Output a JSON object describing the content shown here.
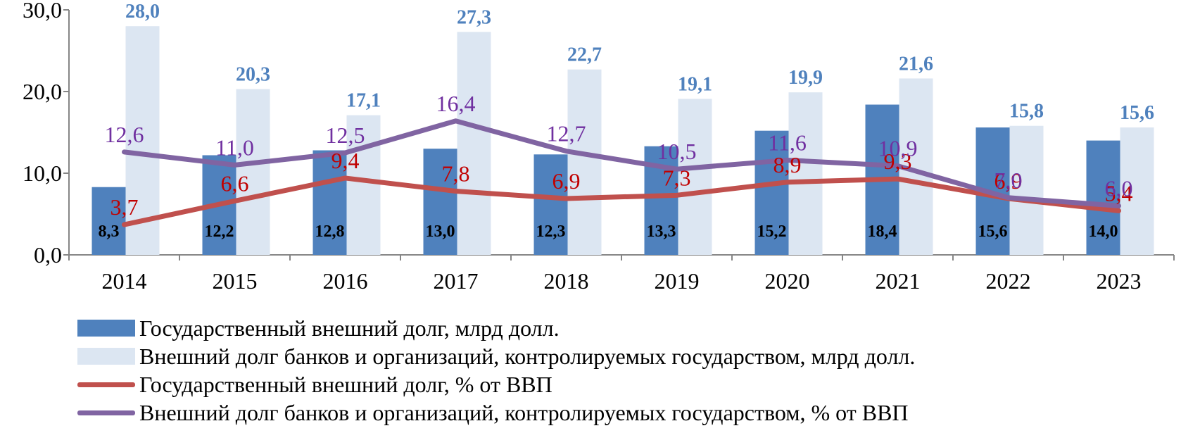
{
  "chart_data": {
    "type": "bar",
    "categories": [
      "2014",
      "2015",
      "2016",
      "2017",
      "2018",
      "2019",
      "2020",
      "2021",
      "2022",
      "2023"
    ],
    "ylim": [
      0,
      30
    ],
    "yticks": [
      "0,0",
      "10,0",
      "20,0",
      "30,0"
    ],
    "grid": false,
    "legend_position": "bottom",
    "series": [
      {
        "name": "Государственный внешний долг, млрд долл.",
        "kind": "bar",
        "color": "#4f81bd",
        "values": [
          8.3,
          12.2,
          12.8,
          13.0,
          12.3,
          13.3,
          15.2,
          18.4,
          15.6,
          14.0
        ],
        "labels": [
          "8,3",
          "12,2",
          "12,8",
          "13,0",
          "12,3",
          "13,3",
          "15,2",
          "18,4",
          "15,6",
          "14,0"
        ],
        "label_color": "#000000"
      },
      {
        "name": "Внешний долг банков и организаций, контролируемых государством, млрд долл.",
        "kind": "bar",
        "color": "#dce6f2",
        "values": [
          28.0,
          20.3,
          17.1,
          27.3,
          22.7,
          19.1,
          19.9,
          21.6,
          15.8,
          15.6
        ],
        "labels": [
          "28,0",
          "20,3",
          "17,1",
          "27,3",
          "22,7",
          "19,1",
          "19,9",
          "21,6",
          "15,8",
          "15,6"
        ],
        "label_color": "#4f81bd"
      },
      {
        "name": "Государственный внешний долг, % от ВВП",
        "kind": "line",
        "color": "#c0504d",
        "values": [
          3.7,
          6.6,
          9.4,
          7.8,
          6.9,
          7.3,
          8.9,
          9.3,
          6.9,
          5.4
        ],
        "labels": [
          "3,7",
          "6,6",
          "9,4",
          "7,8",
          "6,9",
          "7,3",
          "8,9",
          "9,3",
          "6,9",
          "5,4"
        ],
        "label_color": "#c00000"
      },
      {
        "name": "Внешний долг банков и организаций, контролируемых государством, % от ВВП",
        "kind": "line",
        "color": "#8064a2",
        "values": [
          12.6,
          11.0,
          12.5,
          16.4,
          12.7,
          10.5,
          11.6,
          10.9,
          7.0,
          6.0
        ],
        "labels": [
          "12,6",
          "11,0",
          "12,5",
          "16,4",
          "12,7",
          "10,5",
          "11,6",
          "10,9",
          "7,0",
          "6,0"
        ],
        "label_color": "#7030a0"
      }
    ]
  }
}
